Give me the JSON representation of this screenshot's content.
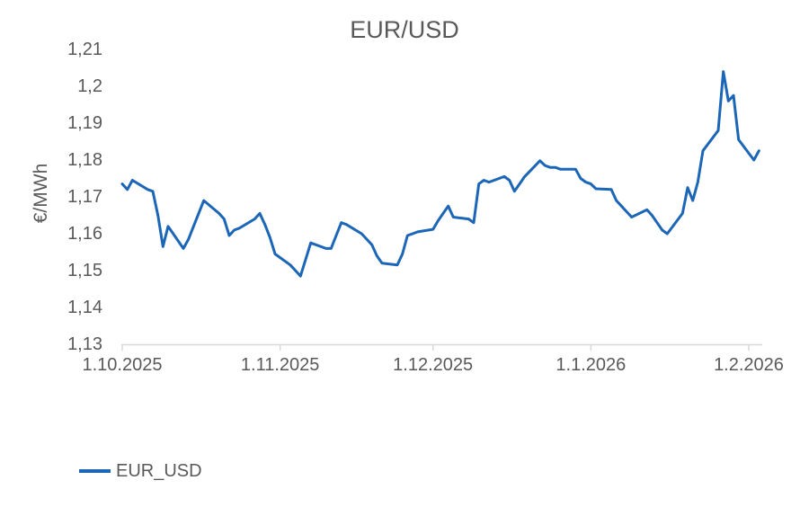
{
  "chart_data": {
    "type": "line",
    "title": "EUR/USD",
    "xlabel": "",
    "ylabel": "€/MWh",
    "grid": false,
    "text_color": "#595959",
    "axis_color": "#d9d9d9",
    "background": "#ffffff",
    "y_axis": {
      "min": 1.13,
      "max": 1.21,
      "tick_step": 0.01,
      "tick_values": [
        1.21,
        1.2,
        1.19,
        1.18,
        1.17,
        1.16,
        1.15,
        1.14,
        1.13
      ],
      "tick_labels": [
        "1,21",
        "1,2",
        "1,19",
        "1,18",
        "1,17",
        "1,16",
        "1,15",
        "1,14",
        "1,13"
      ]
    },
    "x_axis": {
      "tick_dates": [
        "2025-10-01",
        "2025-11-01",
        "2025-12-01",
        "2026-01-01",
        "2026-02-01"
      ],
      "tick_labels": [
        "1.10.2025",
        "1.11.2025",
        "1.12.2025",
        "1.1.2026",
        "1.2.2026"
      ]
    },
    "legend": {
      "position": "bottom-left",
      "entries": [
        "EUR_USD"
      ]
    },
    "series": [
      {
        "name": "EUR_USD",
        "color": "#1c66b8",
        "dates": [
          "2025-10-01",
          "2025-10-02",
          "2025-10-03",
          "2025-10-06",
          "2025-10-07",
          "2025-10-08",
          "2025-10-09",
          "2025-10-10",
          "2025-10-13",
          "2025-10-14",
          "2025-10-15",
          "2025-10-16",
          "2025-10-17",
          "2025-10-20",
          "2025-10-21",
          "2025-10-22",
          "2025-10-23",
          "2025-10-24",
          "2025-10-27",
          "2025-10-28",
          "2025-10-29",
          "2025-10-30",
          "2025-10-31",
          "2025-11-03",
          "2025-11-04",
          "2025-11-05",
          "2025-11-06",
          "2025-11-07",
          "2025-11-10",
          "2025-11-11",
          "2025-11-12",
          "2025-11-13",
          "2025-11-14",
          "2025-11-17",
          "2025-11-18",
          "2025-11-19",
          "2025-11-20",
          "2025-11-21",
          "2025-11-24",
          "2025-11-25",
          "2025-11-26",
          "2025-11-27",
          "2025-11-28",
          "2025-12-01",
          "2025-12-02",
          "2025-12-03",
          "2025-12-04",
          "2025-12-05",
          "2025-12-08",
          "2025-12-09",
          "2025-12-10",
          "2025-12-11",
          "2025-12-12",
          "2025-12-15",
          "2025-12-16",
          "2025-12-17",
          "2025-12-18",
          "2025-12-19",
          "2025-12-22",
          "2025-12-23",
          "2025-12-24",
          "2025-12-25",
          "2025-12-26",
          "2025-12-29",
          "2025-12-30",
          "2025-12-31",
          "2026-01-01",
          "2026-01-02",
          "2026-01-05",
          "2026-01-06",
          "2026-01-07",
          "2026-01-08",
          "2026-01-09",
          "2026-01-12",
          "2026-01-13",
          "2026-01-14",
          "2026-01-15",
          "2026-01-16",
          "2026-01-19",
          "2026-01-20",
          "2026-01-21",
          "2026-01-22",
          "2026-01-23",
          "2026-01-26",
          "2026-01-27",
          "2026-01-28",
          "2026-01-29",
          "2026-01-30",
          "2026-02-02",
          "2026-02-03"
        ],
        "values": [
          1.1735,
          1.172,
          1.1745,
          1.172,
          1.1715,
          1.165,
          1.1565,
          1.162,
          1.156,
          1.1585,
          1.162,
          1.1655,
          1.169,
          1.1655,
          1.164,
          1.1595,
          1.161,
          1.1615,
          1.164,
          1.1655,
          1.1625,
          1.159,
          1.1545,
          1.1515,
          1.15,
          1.1485,
          1.153,
          1.1575,
          1.156,
          1.156,
          1.1595,
          1.163,
          1.1625,
          1.16,
          1.1585,
          1.157,
          1.154,
          1.152,
          1.1515,
          1.1545,
          1.1595,
          1.16,
          1.1605,
          1.1612,
          1.1635,
          1.1655,
          1.1675,
          1.1645,
          1.164,
          1.163,
          1.1735,
          1.1745,
          1.174,
          1.1755,
          1.1745,
          1.1715,
          1.1735,
          1.1755,
          1.1798,
          1.1785,
          1.178,
          1.178,
          1.1775,
          1.1775,
          1.175,
          1.174,
          1.1735,
          1.1722,
          1.172,
          1.169,
          1.1675,
          1.166,
          1.1645,
          1.1665,
          1.165,
          1.163,
          1.161,
          1.16,
          1.1655,
          1.1725,
          1.169,
          1.174,
          1.1825,
          1.188,
          1.204,
          1.196,
          1.1975,
          1.1855,
          1.18,
          1.1825
        ]
      }
    ]
  }
}
